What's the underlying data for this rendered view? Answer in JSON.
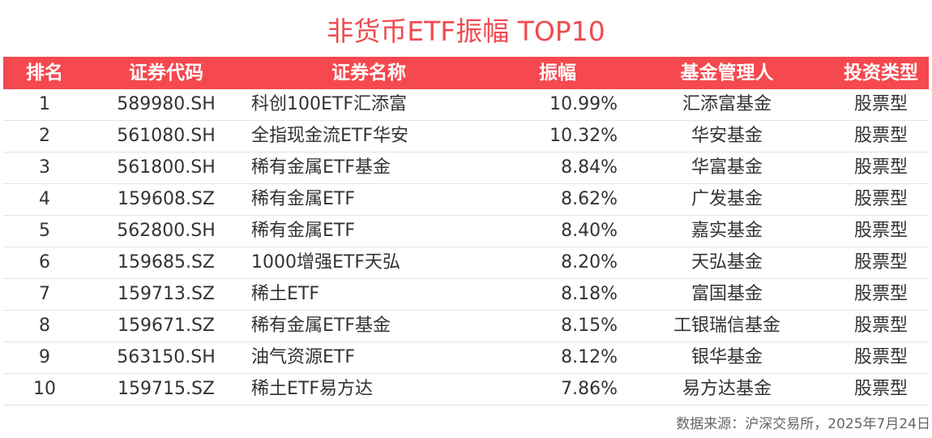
{
  "title": "非货币ETF振幅 TOP10",
  "table": {
    "header": [
      "排名",
      "证券代码",
      "证券名称",
      "振幅",
      "基金管理人",
      "投资类型"
    ],
    "rows": [
      [
        "1",
        "589980.SH",
        "科创100ETF汇添富",
        "10.99%",
        "汇添富基金",
        "股票型"
      ],
      [
        "2",
        "561080.SH",
        "全指现金流ETF华安",
        "10.32%",
        "华安基金",
        "股票型"
      ],
      [
        "3",
        "561800.SH",
        "稀有金属ETF基金",
        "8.84%",
        "华富基金",
        "股票型"
      ],
      [
        "4",
        "159608.SZ",
        "稀有金属ETF",
        "8.62%",
        "广发基金",
        "股票型"
      ],
      [
        "5",
        "562800.SH",
        "稀有金属ETF",
        "8.40%",
        "嘉实基金",
        "股票型"
      ],
      [
        "6",
        "159685.SZ",
        "1000增强ETF天弘",
        "8.20%",
        "天弘基金",
        "股票型"
      ],
      [
        "7",
        "159713.SZ",
        "稀土ETF",
        "8.18%",
        "富国基金",
        "股票型"
      ],
      [
        "8",
        "159671.SZ",
        "稀有金属ETF基金",
        "8.15%",
        "工银瑞信基金",
        "股票型"
      ],
      [
        "9",
        "563150.SH",
        "油气资源ETF",
        "8.12%",
        "银华基金",
        "股票型"
      ],
      [
        "10",
        "159715.SZ",
        "稀土ETF易方达",
        "7.86%",
        "易方达基金",
        "股票型"
      ]
    ]
  },
  "source": "数据来源：沪深交易所，2025年7月24日"
}
